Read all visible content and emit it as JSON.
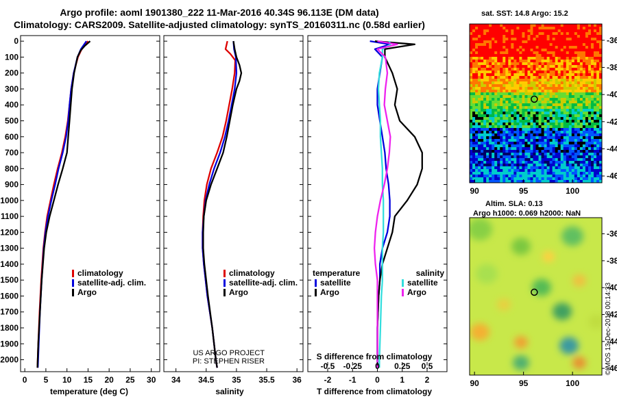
{
  "header": {
    "line1": "Argo profile: aoml 1901380_222 11-Mar-2016 40.34S 96.113E (DM data)",
    "line2": "Climatology: CARS2009. Satellite-adjusted climatology: synTS_20160311.nc (0.58d earlier)"
  },
  "footer_text": {
    "us_argo": "US ARGO PROJECT",
    "pi": "PI: STEPHEN RISER",
    "stamp": "©IMOS 13-Dec-2018 00:14:33"
  },
  "colors": {
    "climatology": "#dd0000",
    "satellite": "#0000dd",
    "argo": "#000000",
    "sat_salinity": "#33dddd",
    "clim_salinity": "#ee22ee"
  },
  "chart_data": [
    {
      "id": "temperature",
      "type": "line",
      "xlabel": "temperature (deg C)",
      "ylabel": "depth",
      "xlim": [
        -1,
        32
      ],
      "ylim": [
        2050,
        0
      ],
      "xticks": [
        "0",
        "5",
        "10",
        "15",
        "20",
        "25",
        "30"
      ],
      "yticks": [
        "0",
        "100",
        "200",
        "300",
        "400",
        "500",
        "600",
        "700",
        "800",
        "900",
        "1000",
        "1100",
        "1200",
        "1300",
        "1400",
        "1500",
        "1600",
        "1700",
        "1800",
        "1900",
        "2000"
      ],
      "legend": [
        "climatology",
        "satellite-adj. clim.",
        "Argo"
      ],
      "series": [
        {
          "name": "climatology",
          "depth": [
            0,
            50,
            100,
            200,
            300,
            400,
            500,
            600,
            700,
            800,
            900,
            1000,
            1100,
            1200,
            1300,
            1500,
            1700,
            1900,
            2050
          ],
          "values": [
            15.0,
            13.5,
            12.6,
            11.6,
            11.0,
            10.6,
            10.2,
            9.6,
            8.8,
            7.8,
            6.9,
            6.1,
            5.3,
            4.8,
            4.4,
            3.9,
            3.5,
            3.2,
            3.0
          ]
        },
        {
          "name": "satellite-adj. clim.",
          "depth": [
            0,
            50,
            100,
            200,
            300,
            400,
            500,
            600,
            700,
            800,
            900,
            1000,
            1100,
            1200,
            1300,
            1500,
            1700,
            1900,
            2050
          ],
          "values": [
            14.6,
            13.3,
            12.5,
            11.6,
            11.0,
            10.6,
            10.3,
            9.8,
            9.0,
            8.0,
            7.2,
            6.3,
            5.5,
            4.9,
            4.5,
            4.0,
            3.6,
            3.3,
            3.1
          ]
        },
        {
          "name": "Argo",
          "depth": [
            0,
            30,
            60,
            100,
            200,
            300,
            400,
            500,
            600,
            700,
            800,
            900,
            1000,
            1100,
            1200,
            1300,
            1500,
            1700,
            1900,
            2050
          ],
          "values": [
            15.5,
            14.2,
            13.2,
            12.5,
            11.7,
            11.2,
            10.9,
            10.6,
            10.3,
            10.0,
            9.0,
            7.9,
            6.9,
            5.9,
            5.1,
            4.6,
            4.0,
            3.6,
            3.2,
            3.0
          ]
        }
      ]
    },
    {
      "id": "salinity",
      "type": "line",
      "xlabel": "salinity",
      "ylabel": "depth",
      "xlim": [
        33.8,
        36.1
      ],
      "ylim": [
        2050,
        0
      ],
      "xticks": [
        "34",
        "34.5",
        "35",
        "35.5",
        "36"
      ],
      "legend": [
        "climatology",
        "satellite-adj. clim.",
        "Argo"
      ],
      "series": [
        {
          "name": "climatology",
          "depth": [
            0,
            50,
            80,
            120,
            200,
            300,
            400,
            500,
            600,
            700,
            800,
            900,
            1000,
            1100,
            1200,
            1300,
            1400,
            1600,
            1800,
            2000,
            2050
          ],
          "values": [
            34.85,
            34.82,
            34.9,
            34.98,
            34.97,
            34.93,
            34.88,
            34.83,
            34.77,
            34.68,
            34.58,
            34.51,
            34.47,
            34.45,
            34.44,
            34.44,
            34.46,
            34.52,
            34.6,
            34.66,
            34.68
          ]
        },
        {
          "name": "satellite-adj. clim.",
          "depth": [
            0,
            50,
            100,
            200,
            300,
            400,
            500,
            600,
            700,
            800,
            900,
            1000,
            1100,
            1200,
            1300,
            1400,
            1600,
            1800,
            2000,
            2050
          ],
          "values": [
            34.95,
            34.96,
            34.99,
            35.0,
            34.97,
            34.92,
            34.87,
            34.81,
            34.73,
            34.63,
            34.55,
            34.49,
            34.46,
            34.44,
            34.44,
            34.46,
            34.52,
            34.6,
            34.66,
            34.68
          ]
        },
        {
          "name": "Argo",
          "depth": [
            0,
            50,
            100,
            150,
            200,
            250,
            300,
            400,
            500,
            600,
            700,
            800,
            900,
            1000,
            1100,
            1200,
            1300,
            1400,
            1600,
            1800,
            2000,
            2050
          ],
          "values": [
            34.95,
            34.97,
            35.0,
            35.05,
            35.08,
            35.05,
            35.0,
            34.94,
            34.89,
            34.84,
            34.78,
            34.68,
            34.58,
            34.5,
            34.46,
            34.45,
            34.45,
            34.47,
            34.53,
            34.6,
            34.66,
            34.68
          ]
        }
      ],
      "annotation": [
        "US ARGO PROJECT",
        "PI: STEPHEN RISER"
      ]
    },
    {
      "id": "difference",
      "type": "line",
      "xlabel": "T difference from climatology",
      "x2label": "S difference from climatology",
      "xlim": [
        -2.8,
        2.8
      ],
      "ylim": [
        2050,
        0
      ],
      "xticks": [
        "-2",
        "-1",
        "0",
        "1",
        "2"
      ],
      "x2ticks": [
        "-0.5",
        "-0.25",
        "0",
        "0.25",
        "0.5"
      ],
      "legend_left_title": "temperature",
      "legend_right_title": "salinity",
      "legend_left": [
        "satellite",
        "Argo"
      ],
      "legend_right": [
        "satellite",
        "Argo"
      ],
      "series": [
        {
          "name": "T satellite",
          "depth": [
            0,
            20,
            50,
            100,
            200,
            300,
            400,
            500,
            600,
            700,
            800,
            900,
            1000,
            1100,
            1200,
            1300,
            1400,
            1500,
            1600,
            1800,
            2000,
            2050
          ],
          "values": [
            -0.3,
            0.5,
            -0.1,
            0.2,
            0.1,
            0.0,
            0.0,
            0.1,
            0.2,
            0.3,
            0.35,
            0.45,
            0.5,
            0.5,
            0.4,
            0.2,
            0.1,
            0.1,
            0.05,
            0.0,
            0.0,
            0.0
          ]
        },
        {
          "name": "T Argo",
          "depth": [
            0,
            20,
            50,
            100,
            200,
            300,
            400,
            500,
            600,
            700,
            800,
            900,
            1000,
            1100,
            1200,
            1300,
            1400,
            1500,
            1600,
            1800,
            2000,
            2050
          ],
          "values": [
            -0.1,
            1.5,
            0.3,
            0.3,
            0.6,
            0.8,
            0.7,
            0.9,
            1.5,
            1.8,
            1.8,
            1.6,
            1.2,
            0.7,
            0.6,
            0.4,
            0.2,
            0.1,
            0.05,
            0.0,
            0.0,
            0.0
          ]
        },
        {
          "name": "S satellite",
          "depth": [
            0,
            20,
            50,
            100,
            200,
            300,
            400,
            500,
            600,
            700,
            800,
            900,
            1000,
            1100,
            1200,
            1300,
            1400,
            1500,
            1600,
            1800,
            2000,
            2050
          ],
          "values": [
            0.12,
            0.13,
            0.05,
            0.05,
            0.02,
            0.01,
            0.02,
            0.03,
            0.03,
            0.04,
            0.05,
            0.05,
            0.06,
            0.06,
            0.06,
            0.05,
            0.05,
            0.05,
            0.04,
            0.03,
            0.02,
            0.02
          ]
        },
        {
          "name": "S Argo",
          "depth": [
            0,
            20,
            50,
            100,
            200,
            300,
            400,
            500,
            600,
            700,
            800,
            900,
            1000,
            1100,
            1200,
            1300,
            1400,
            1500,
            1600,
            1800,
            2000,
            2050
          ],
          "values": [
            0.0,
            0.2,
            0.0,
            0.08,
            0.1,
            0.08,
            0.07,
            0.1,
            0.13,
            0.12,
            0.1,
            0.07,
            0.03,
            0.0,
            -0.02,
            -0.03,
            -0.02,
            0.0,
            0.0,
            0.0,
            0.0,
            0.0
          ]
        }
      ]
    },
    {
      "id": "sst_map",
      "type": "heatmap",
      "title": "sat. SST: 14.8 Argo: 15.2",
      "xticks": [
        "90",
        "95",
        "100"
      ],
      "yticks": [
        "-36",
        "-38",
        "-40",
        "-42",
        "-44",
        "-46"
      ],
      "xlim": [
        89.5,
        103
      ],
      "ylim": [
        -46.5,
        -34.8
      ],
      "float_position": {
        "lon": 96.1,
        "lat": -40.34
      }
    },
    {
      "id": "sla_map",
      "type": "heatmap",
      "title_line1": "Altim. SLA: 0.13",
      "title_line2": "Argo h1000: 0.069 h2000: NaN",
      "xticks": [
        "90",
        "95",
        "100"
      ],
      "yticks": [
        "-36",
        "-38",
        "-40",
        "-42",
        "-44",
        "-46"
      ],
      "xlim": [
        89.5,
        103
      ],
      "ylim": [
        -46.5,
        -34.8
      ],
      "float_position": {
        "lon": 96.1,
        "lat": -40.34
      }
    }
  ]
}
